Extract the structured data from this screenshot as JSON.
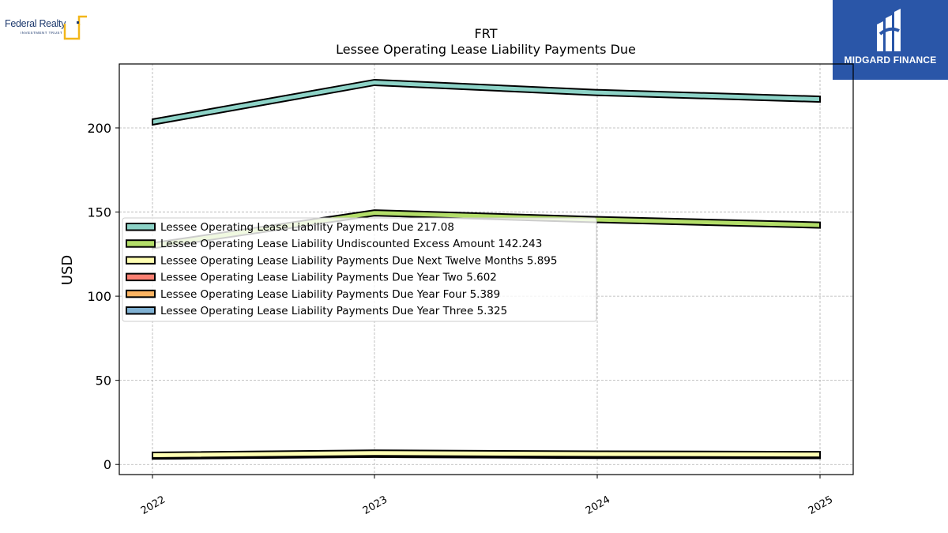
{
  "logos": {
    "left_name": "Federal Realty",
    "left_sub": "INVESTMENT TRUST",
    "right_name": "MIDGARD FINANCE"
  },
  "chart_data": {
    "type": "area",
    "title": "FRT",
    "subtitle": "Lessee Operating Lease Liability Payments Due",
    "ylabel": "USD",
    "xlabel": "",
    "categories": [
      "2022",
      "2023",
      "2024",
      "2025"
    ],
    "ylim": [
      -6,
      238
    ],
    "yticks": [
      0,
      50,
      100,
      150,
      200
    ],
    "grid": true,
    "legend_position": "center-left",
    "series": [
      {
        "name": "Lessee Operating Lease Liability Payments Due",
        "legend_value": "217.08",
        "color": "#8dd3c7",
        "values": [
          203.5,
          227.0,
          221.0,
          217.08
        ]
      },
      {
        "name": "Lessee Operating Lease Liability Undiscounted Excess Amount",
        "legend_value": "142.243",
        "color": "#b3de69",
        "values": [
          130.0,
          149.5,
          145.5,
          142.243
        ]
      },
      {
        "name": "Lessee Operating Lease Liability Payments Due Next Twelve Months",
        "legend_value": "5.895",
        "color": "#ffffb3",
        "values": [
          5.5,
          6.8,
          6.2,
          5.895
        ]
      },
      {
        "name": "Lessee Operating Lease Liability Payments Due Year Two",
        "legend_value": "5.602",
        "color": "#fb8072",
        "values": [
          5.3,
          6.5,
          5.9,
          5.602
        ]
      },
      {
        "name": "Lessee Operating Lease Liability Payments Due Year Four",
        "legend_value": "5.389",
        "color": "#fdb462",
        "values": [
          5.1,
          6.2,
          5.6,
          5.389
        ]
      },
      {
        "name": "Lessee Operating Lease Liability Payments Due Year Three",
        "legend_value": "5.325",
        "color": "#80b1d3",
        "values": [
          5.0,
          6.0,
          5.4,
          5.325
        ]
      }
    ]
  }
}
